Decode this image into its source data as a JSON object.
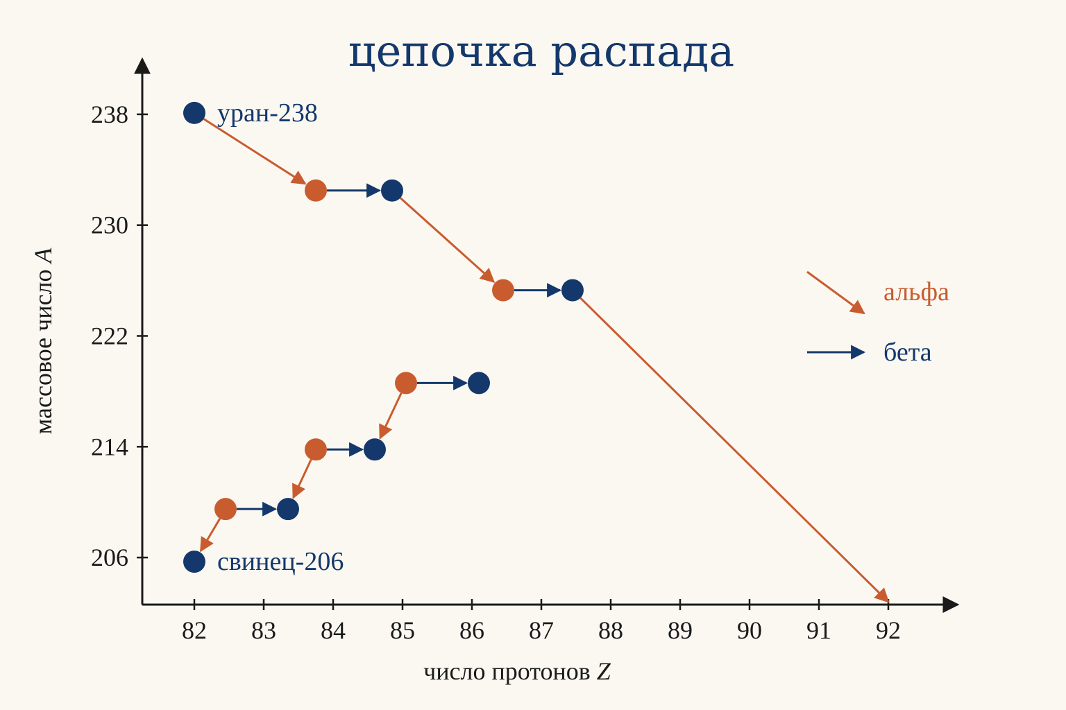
{
  "chart_data": {
    "type": "scatter",
    "title": "цепочка распада",
    "xlabel_text": "число протонов ",
    "xlabel_symbol": "Z",
    "ylabel_text": "массовое число ",
    "ylabel_symbol": "A",
    "x_ticks": [
      82,
      83,
      84,
      85,
      86,
      87,
      88,
      89,
      90,
      91,
      92
    ],
    "y_ticks": [
      206,
      214,
      222,
      230,
      238
    ],
    "xlim": [
      81.25,
      93.0
    ],
    "ylim": [
      202.6,
      242.0
    ],
    "colors": {
      "alpha": "#c95c2f",
      "beta": "#14386b",
      "axis": "#1a1a1a"
    },
    "nodes": [
      {
        "id": "u238",
        "x": 82.0,
        "y": 238.1,
        "color": "beta",
        "label": "уран-238"
      },
      {
        "id": "n1",
        "x": 83.75,
        "y": 232.5,
        "color": "alpha"
      },
      {
        "id": "n2",
        "x": 84.85,
        "y": 232.5,
        "color": "beta"
      },
      {
        "id": "n3",
        "x": 86.45,
        "y": 225.3,
        "color": "alpha"
      },
      {
        "id": "n4",
        "x": 87.45,
        "y": 225.3,
        "color": "beta"
      },
      {
        "id": "n5",
        "x": 85.05,
        "y": 218.6,
        "color": "alpha"
      },
      {
        "id": "n6",
        "x": 86.1,
        "y": 218.6,
        "color": "beta"
      },
      {
        "id": "n7",
        "x": 83.75,
        "y": 213.8,
        "color": "alpha"
      },
      {
        "id": "n8",
        "x": 84.6,
        "y": 213.8,
        "color": "beta"
      },
      {
        "id": "n9",
        "x": 82.45,
        "y": 209.5,
        "color": "alpha"
      },
      {
        "id": "n10",
        "x": 83.35,
        "y": 209.5,
        "color": "beta"
      },
      {
        "id": "pb206",
        "x": 82.0,
        "y": 205.7,
        "color": "beta",
        "label": "свинец-206"
      }
    ],
    "transitions": [
      {
        "from": "u238",
        "to": "n1",
        "type": "alpha"
      },
      {
        "from": "n1",
        "to": "n2",
        "type": "beta"
      },
      {
        "from": "n2",
        "to": "n3",
        "type": "alpha"
      },
      {
        "from": "n3",
        "to": "n4",
        "type": "beta"
      },
      {
        "from": "n4",
        "to_point": {
          "x": 92.0,
          "y": 202.8
        },
        "type": "alpha"
      },
      {
        "from": "n5",
        "to": "n6",
        "type": "beta"
      },
      {
        "from": "n5",
        "to": "n8",
        "type": "alpha"
      },
      {
        "from": "n7",
        "to": "n8",
        "type": "beta"
      },
      {
        "from": "n7",
        "to": "n10",
        "type": "alpha"
      },
      {
        "from": "n9",
        "to": "n10",
        "type": "beta"
      },
      {
        "from": "n9",
        "to": "pb206",
        "type": "alpha"
      }
    ],
    "legend": [
      {
        "type": "alpha",
        "label": "альфа"
      },
      {
        "type": "beta",
        "label": "бета"
      }
    ],
    "legend_position": "right",
    "grid": false
  }
}
